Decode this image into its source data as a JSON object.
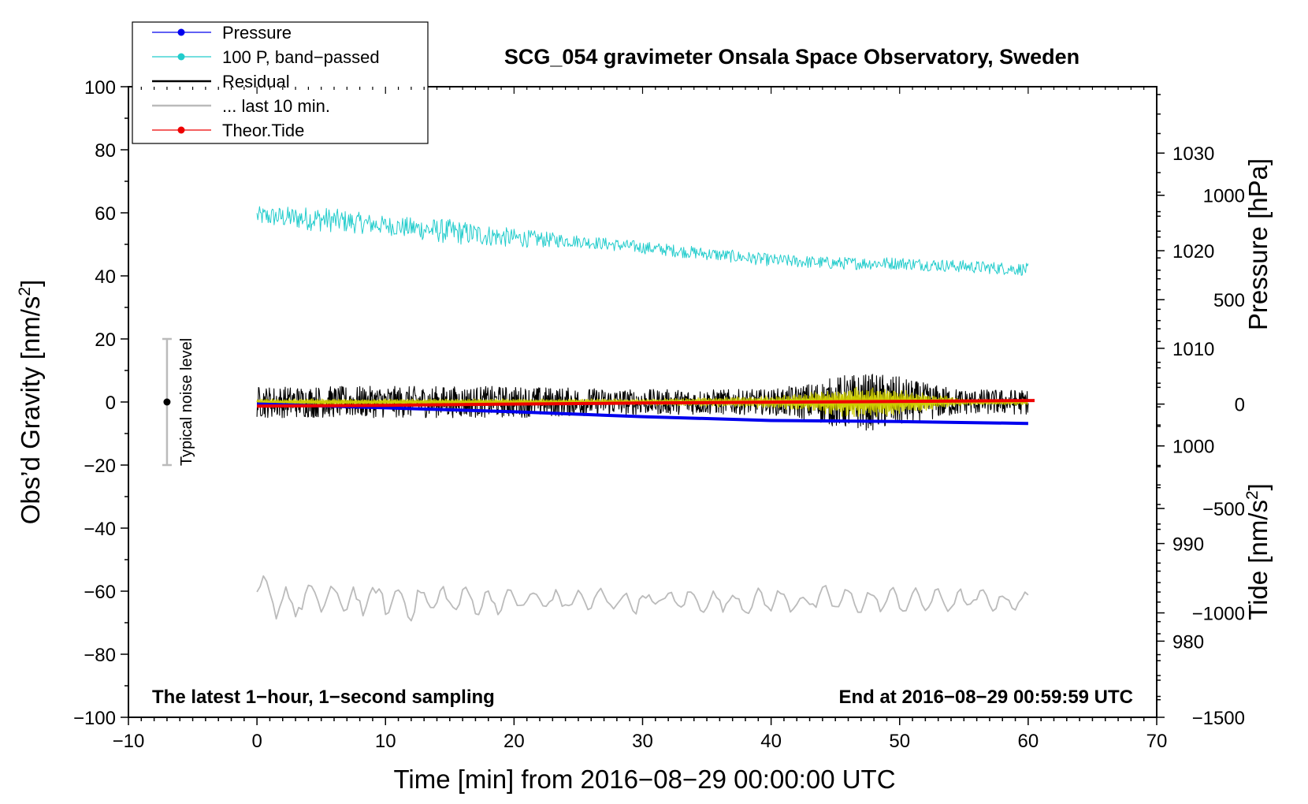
{
  "chart_data": {
    "type": "line",
    "title": "SCG_054 gravimeter Onsala Space Observatory, Sweden",
    "xlabel": "Time [min] from 2016−08−29 00:00:00 UTC",
    "ylabel_left": "Obs’d Gravity [nm/s",
    "ylabel_left_sup": "2",
    "ylabel_left_end": "]",
    "ylabel_right_pressure": "Pressure [hPa]",
    "ylabel_right_tide": "Tide [nm/s",
    "ylabel_right_tide_sup": "2",
    "ylabel_right_tide_end": "]",
    "xlim": [
      -10,
      70
    ],
    "ylim_left": [
      -100,
      100
    ],
    "pressure_lim": [
      972.2,
      1036.8
    ],
    "tide_lim": [
      -1500,
      1520
    ],
    "x_ticks": [
      -10,
      0,
      10,
      20,
      30,
      40,
      50,
      60,
      70
    ],
    "x_tick_labels": [
      "−10",
      "0",
      "10",
      "20",
      "30",
      "40",
      "50",
      "60",
      "70"
    ],
    "y_left_ticks": [
      -100,
      -80,
      -60,
      -40,
      -20,
      0,
      20,
      40,
      60,
      80,
      100
    ],
    "y_left_tick_labels": [
      "−100",
      "−80",
      "−60",
      "−40",
      "−20",
      "0",
      "20",
      "40",
      "60",
      "80",
      "100"
    ],
    "pressure_ticks": [
      980,
      990,
      1000,
      1010,
      1020,
      1030
    ],
    "pressure_tick_labels": [
      "980",
      "990",
      "1000",
      "1010",
      "1020",
      "1030"
    ],
    "tide_ticks": [
      -1500,
      -1000,
      -500,
      0,
      500,
      1000
    ],
    "tide_tick_labels": [
      "−1500",
      "−1000",
      "−500",
      "0",
      "500",
      "1000"
    ],
    "annotation_left": "The latest 1−hour, 1−second sampling",
    "annotation_right": "End at 2016−08−29 00:59:59 UTC",
    "noise_bar": {
      "x": -7,
      "center": 0,
      "low": -20,
      "high": 20,
      "label": "Typical noise level"
    },
    "legend": {
      "position": "top-left",
      "entries": [
        {
          "label": "Pressure",
          "color": "#0000ee",
          "marker": true
        },
        {
          "label": "100 P, band−passed",
          "color": "#22cccc",
          "marker": true
        },
        {
          "label": "Residual",
          "color": "#000000",
          "marker": false
        },
        {
          "label": "... last 10 min.",
          "color": "#bbbbbb",
          "marker": false
        },
        {
          "label": "Theor.Tide",
          "color": "#ee0000",
          "marker": true
        }
      ]
    },
    "series": [
      {
        "name": "Pressure",
        "axis": "pressure",
        "color": "#0000ee",
        "x": [
          0,
          10,
          20,
          30,
          40,
          50,
          60
        ],
        "values": [
          1004.3,
          1003.9,
          1003.5,
          1003.0,
          1002.6,
          1002.5,
          1002.3
        ]
      },
      {
        "name": "100 P, band−passed",
        "axis": "left",
        "color": "#22cccc",
        "x": [
          0,
          5,
          10,
          15,
          20,
          25,
          30,
          35,
          40,
          45,
          50,
          55,
          60
        ],
        "values": [
          59,
          58,
          56,
          54,
          52,
          51,
          49,
          47,
          45,
          44,
          44,
          43,
          42
        ],
        "noise_amp": [
          3,
          4,
          3,
          4,
          3,
          2,
          2,
          2,
          2,
          2,
          2,
          2,
          2
        ]
      },
      {
        "name": "Residual",
        "axis": "left",
        "color": "#000000",
        "x": [
          0,
          10,
          20,
          30,
          40,
          43,
          46,
          49,
          52,
          55,
          60
        ],
        "values": [
          0,
          0,
          0,
          0,
          0,
          0,
          0,
          0,
          0,
          0,
          0
        ],
        "noise_amp": [
          5,
          5,
          5,
          4,
          4,
          6,
          9,
          9,
          6,
          4,
          4
        ]
      },
      {
        "name": "Residual (band-passed)",
        "axis": "left",
        "color": "#cccc00",
        "x": [
          0,
          10,
          20,
          30,
          40,
          43,
          46,
          49,
          52,
          55,
          60
        ],
        "values": [
          0,
          0,
          0,
          0,
          0,
          0,
          0,
          0,
          0,
          0,
          0
        ],
        "noise_amp": [
          1,
          1,
          1,
          1,
          2,
          3,
          5,
          5,
          3,
          1,
          1
        ]
      },
      {
        "name": "... last 10 min.",
        "axis": "left",
        "color": "#bbbbbb",
        "x": [
          0,
          10,
          20,
          30,
          40,
          50,
          60
        ],
        "values": [
          -63,
          -63,
          -63,
          -63,
          -63,
          -63,
          -63
        ],
        "noise_amp": [
          7,
          6,
          4,
          4,
          4,
          4,
          3
        ]
      },
      {
        "name": "Theor.Tide",
        "axis": "tide",
        "color": "#ee0000",
        "x": [
          0,
          10,
          20,
          30,
          40,
          50,
          60.5
        ],
        "values": [
          -10,
          -6,
          0,
          5,
          9,
          13,
          17
        ]
      }
    ]
  }
}
